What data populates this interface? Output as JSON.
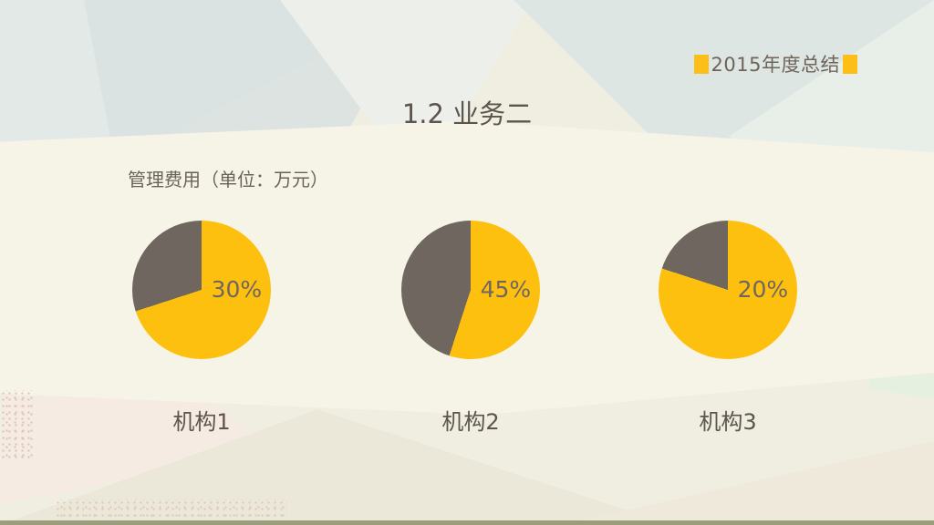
{
  "slide": {
    "header_badge": {
      "label": "2015年度总结",
      "accent_color": "#FDBF17"
    },
    "title": "1.2 业务二",
    "subtitle": "管理费用（单位：万元）"
  },
  "chart_data": {
    "type": "pie",
    "title": "管理费用（单位：万元）",
    "unit": "万元",
    "categories": [
      "机构1",
      "机构2",
      "机构3"
    ],
    "series": [
      {
        "category": "机构1",
        "value_pct": 30,
        "label": "30%"
      },
      {
        "category": "机构2",
        "value_pct": 45,
        "label": "45%"
      },
      {
        "category": "机构3",
        "value_pct": 20,
        "label": "20%"
      }
    ],
    "slice_color": "#6F6660",
    "remainder_color": "#FEC00F",
    "slice_start": "12-oclock, sweeping counterclockwise",
    "label_position": "inside, right of center",
    "legend": "none"
  }
}
